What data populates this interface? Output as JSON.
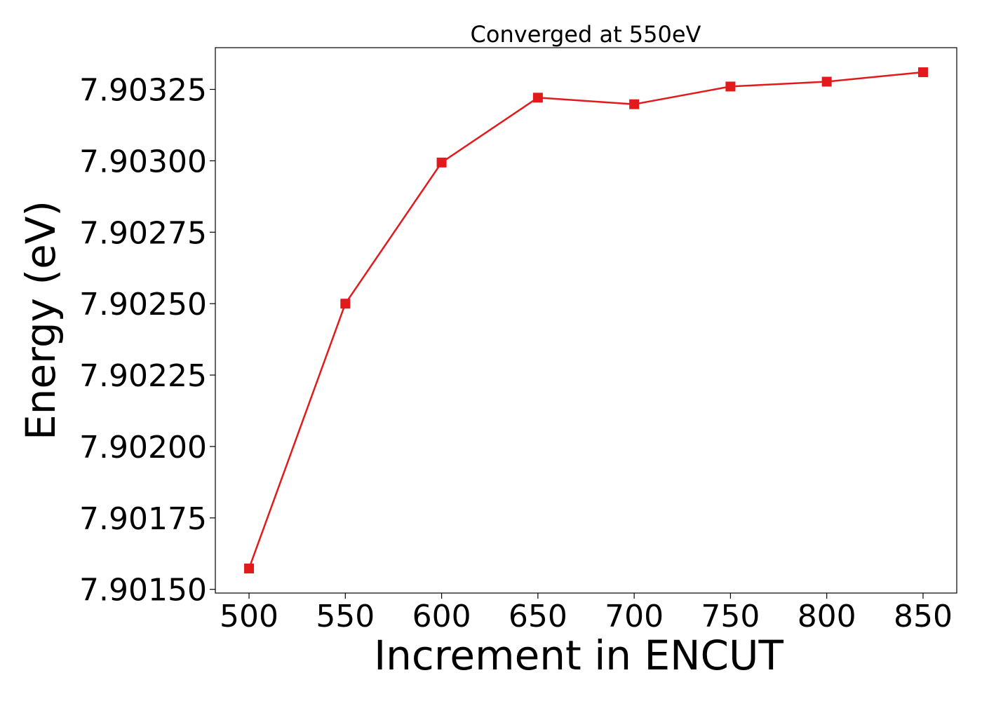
{
  "chart_data": {
    "type": "line",
    "title": "Converged at 550eV",
    "xlabel": "Increment in ENCUT",
    "ylabel": "Energy (eV)",
    "x": [
      500,
      550,
      600,
      650,
      700,
      750,
      800,
      850
    ],
    "series": [
      {
        "values": [
          7.901573,
          7.9025,
          7.902994,
          7.903221,
          7.903198,
          7.90326,
          7.903277,
          7.90331
        ],
        "color": "#e31a1c",
        "marker": "square"
      }
    ],
    "xticks": [
      500,
      550,
      600,
      650,
      700,
      750,
      800,
      850
    ],
    "xtick_labels": [
      "500",
      "550",
      "600",
      "650",
      "700",
      "750",
      "800",
      "850"
    ],
    "yticks": [
      7.9015,
      7.90175,
      7.902,
      7.90225,
      7.9025,
      7.90275,
      7.903,
      7.90325
    ],
    "ytick_labels": [
      "7.90150",
      "7.90175",
      "7.90200",
      "7.90225",
      "7.90250",
      "7.90275",
      "7.90300",
      "7.90325"
    ],
    "xlim": [
      482.5,
      867.5
    ],
    "ylim": [
      7.901487,
      7.903396
    ],
    "grid": false,
    "legend": "none"
  }
}
